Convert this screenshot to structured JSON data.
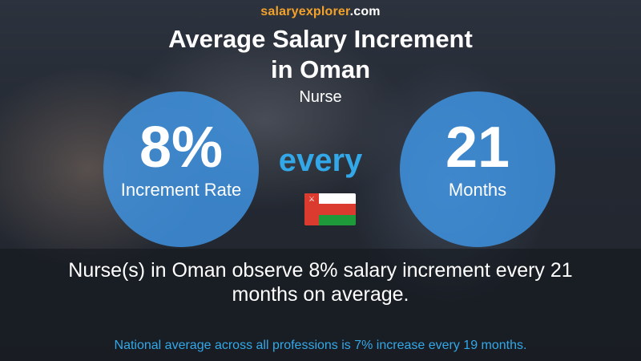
{
  "site": {
    "part1": "salary",
    "part2": "explorer",
    "part3": ".com"
  },
  "title_line1": "Average Salary Increment",
  "title_line2": "in Oman",
  "subtitle": "Nurse",
  "left_circle": {
    "value": "8%",
    "label": "Increment Rate"
  },
  "middle_word": "every",
  "right_circle": {
    "value": "21",
    "label": "Months"
  },
  "description_line1": "Nurse(s) in Oman observe 8% salary increment every 21",
  "description_line2": "months on average.",
  "national_note": "National average across all professions is 7% increase every 19 months.",
  "icons": {
    "flag": "oman-flag-icon"
  },
  "colors": {
    "accent_blue": "#33a8e8",
    "circle_blue": "#4096e6",
    "brand_orange": "#f3a12a"
  }
}
